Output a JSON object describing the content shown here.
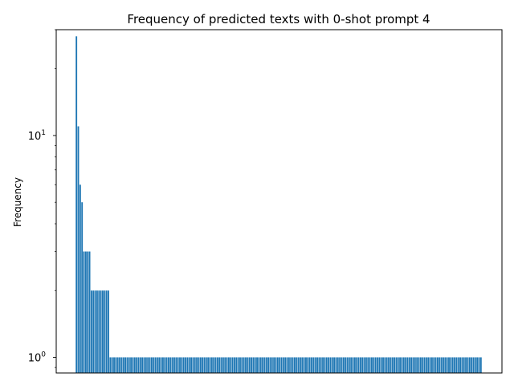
{
  "chart_data": {
    "type": "bar",
    "title": "Frequency of predicted texts with 0-shot prompt 4",
    "xlabel": "",
    "ylabel": "Frequency",
    "yscale": "log",
    "ylim": [
      0.85,
      30
    ],
    "y_tick_labels": [
      {
        "value": 1,
        "label": "10",
        "exp": "0"
      },
      {
        "value": 10,
        "label": "10",
        "exp": "1"
      }
    ],
    "x_tick_labels": [],
    "grid": false,
    "legend": "none",
    "bar_color": "#1f77b4",
    "values": [
      28,
      11,
      6,
      5,
      3,
      3,
      3,
      3,
      2,
      2,
      2,
      2,
      2,
      2,
      2,
      2,
      2,
      2,
      1,
      1,
      1,
      1,
      1,
      1,
      1,
      1,
      1,
      1,
      1,
      1,
      1,
      1,
      1,
      1,
      1,
      1,
      1,
      1,
      1,
      1,
      1,
      1,
      1,
      1,
      1,
      1,
      1,
      1,
      1,
      1,
      1,
      1,
      1,
      1,
      1,
      1,
      1,
      1,
      1,
      1,
      1,
      1,
      1,
      1,
      1,
      1,
      1,
      1,
      1,
      1,
      1,
      1,
      1,
      1,
      1,
      1,
      1,
      1,
      1,
      1,
      1,
      1,
      1,
      1,
      1,
      1,
      1,
      1,
      1,
      1,
      1,
      1,
      1,
      1,
      1,
      1,
      1,
      1,
      1,
      1,
      1,
      1,
      1,
      1,
      1,
      1,
      1,
      1,
      1,
      1,
      1,
      1,
      1,
      1,
      1,
      1,
      1,
      1,
      1,
      1,
      1,
      1,
      1,
      1,
      1,
      1,
      1,
      1,
      1,
      1,
      1,
      1,
      1,
      1,
      1,
      1,
      1,
      1,
      1,
      1,
      1,
      1,
      1,
      1,
      1,
      1,
      1,
      1,
      1,
      1,
      1,
      1,
      1,
      1,
      1,
      1,
      1,
      1,
      1,
      1,
      1,
      1,
      1,
      1,
      1,
      1,
      1,
      1,
      1,
      1,
      1,
      1,
      1,
      1,
      1,
      1,
      1,
      1,
      1,
      1,
      1,
      1,
      1,
      1,
      1,
      1,
      1,
      1,
      1,
      1,
      1,
      1,
      1,
      1,
      1,
      1,
      1,
      1,
      1,
      1,
      1,
      1,
      1,
      1,
      1,
      1,
      1,
      1,
      1,
      1,
      1,
      1,
      1,
      1,
      1,
      1
    ]
  }
}
